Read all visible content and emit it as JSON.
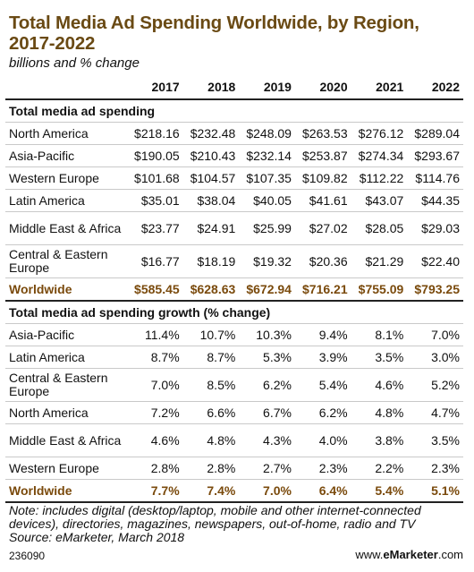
{
  "title": "Total Media Ad Spending Worldwide, by Region, 2017-2022",
  "subtitle": "billions and % change",
  "years": [
    "2017",
    "2018",
    "2019",
    "2020",
    "2021",
    "2022"
  ],
  "section1": {
    "heading": "Total media ad spending",
    "rows": [
      {
        "label": "North America",
        "values": [
          "$218.16",
          "$232.48",
          "$248.09",
          "$263.53",
          "$276.12",
          "$289.04"
        ]
      },
      {
        "label": "Asia-Pacific",
        "values": [
          "$190.05",
          "$210.43",
          "$232.14",
          "$253.87",
          "$274.34",
          "$293.67"
        ]
      },
      {
        "label": "Western Europe",
        "values": [
          "$101.68",
          "$104.57",
          "$107.35",
          "$109.82",
          "$112.22",
          "$114.76"
        ]
      },
      {
        "label": "Latin America",
        "values": [
          "$35.01",
          "$38.04",
          "$40.05",
          "$41.61",
          "$43.07",
          "$44.35"
        ]
      },
      {
        "label": "Middle East & Africa",
        "values": [
          "$23.77",
          "$24.91",
          "$25.99",
          "$27.02",
          "$28.05",
          "$29.03"
        ]
      },
      {
        "label": "Central & Eastern Europe",
        "values": [
          "$16.77",
          "$18.19",
          "$19.32",
          "$20.36",
          "$21.29",
          "$22.40"
        ]
      }
    ],
    "total": {
      "label": "Worldwide",
      "values": [
        "$585.45",
        "$628.63",
        "$672.94",
        "$716.21",
        "$755.09",
        "$793.25"
      ]
    }
  },
  "section2": {
    "heading": "Total media ad spending growth (% change)",
    "rows": [
      {
        "label": "Asia-Pacific",
        "values": [
          "11.4%",
          "10.7%",
          "10.3%",
          "9.4%",
          "8.1%",
          "7.0%"
        ]
      },
      {
        "label": "Latin America",
        "values": [
          "8.7%",
          "8.7%",
          "5.3%",
          "3.9%",
          "3.5%",
          "3.0%"
        ]
      },
      {
        "label": "Central & Eastern Europe",
        "values": [
          "7.0%",
          "8.5%",
          "6.2%",
          "5.4%",
          "4.6%",
          "5.2%"
        ]
      },
      {
        "label": "North America",
        "values": [
          "7.2%",
          "6.6%",
          "6.7%",
          "6.2%",
          "4.8%",
          "4.7%"
        ]
      },
      {
        "label": "Middle East & Africa",
        "values": [
          "4.6%",
          "4.8%",
          "4.3%",
          "4.0%",
          "3.8%",
          "3.5%"
        ]
      },
      {
        "label": "Western Europe",
        "values": [
          "2.8%",
          "2.8%",
          "2.7%",
          "2.3%",
          "2.2%",
          "2.3%"
        ]
      }
    ],
    "total": {
      "label": "Worldwide",
      "values": [
        "7.7%",
        "7.4%",
        "7.0%",
        "6.4%",
        "5.4%",
        "5.1%"
      ]
    }
  },
  "note": "Note: includes digital (desktop/laptop, mobile and other internet-connected devices), directories, magazines, newspapers, out-of-home, radio and TV",
  "source": "Source: eMarketer, March 2018",
  "chart_id": "236090",
  "brand": {
    "prefix": "www.",
    "name": "eMarketer",
    "suffix": ".com"
  },
  "colors": {
    "title": "#6a4a14",
    "total_row": "#7a4a0c"
  },
  "chart_data": {
    "type": "table",
    "title": "Total Media Ad Spending Worldwide, by Region, 2017-2022",
    "subtitle": "billions and % change",
    "columns": [
      "2017",
      "2018",
      "2019",
      "2020",
      "2021",
      "2022"
    ],
    "tables": [
      {
        "name": "Total media ad spending",
        "rows": [
          {
            "label": "North America",
            "values": [
              218.16,
              232.48,
              248.09,
              263.53,
              276.12,
              289.04
            ]
          },
          {
            "label": "Asia-Pacific",
            "values": [
              190.05,
              210.43,
              232.14,
              253.87,
              274.34,
              293.67
            ]
          },
          {
            "label": "Western Europe",
            "values": [
              101.68,
              104.57,
              107.35,
              109.82,
              112.22,
              114.76
            ]
          },
          {
            "label": "Latin America",
            "values": [
              35.01,
              38.04,
              40.05,
              41.61,
              43.07,
              44.35
            ]
          },
          {
            "label": "Middle East & Africa",
            "values": [
              23.77,
              24.91,
              25.99,
              27.02,
              28.05,
              29.03
            ]
          },
          {
            "label": "Central & Eastern Europe",
            "values": [
              16.77,
              18.19,
              19.32,
              20.36,
              21.29,
              22.4
            ]
          },
          {
            "label": "Worldwide",
            "values": [
              585.45,
              628.63,
              672.94,
              716.21,
              755.09,
              793.25
            ]
          }
        ]
      },
      {
        "name": "Total media ad spending growth (% change)",
        "rows": [
          {
            "label": "Asia-Pacific",
            "values": [
              11.4,
              10.7,
              10.3,
              9.4,
              8.1,
              7.0
            ]
          },
          {
            "label": "Latin America",
            "values": [
              8.7,
              8.7,
              5.3,
              3.9,
              3.5,
              3.0
            ]
          },
          {
            "label": "Central & Eastern Europe",
            "values": [
              7.0,
              8.5,
              6.2,
              5.4,
              4.6,
              5.2
            ]
          },
          {
            "label": "North America",
            "values": [
              7.2,
              6.6,
              6.7,
              6.2,
              4.8,
              4.7
            ]
          },
          {
            "label": "Middle East & Africa",
            "values": [
              4.6,
              4.8,
              4.3,
              4.0,
              3.8,
              3.5
            ]
          },
          {
            "label": "Western Europe",
            "values": [
              2.8,
              2.8,
              2.7,
              2.3,
              2.2,
              2.3
            ]
          },
          {
            "label": "Worldwide",
            "values": [
              7.7,
              7.4,
              7.0,
              6.4,
              5.4,
              5.1
            ]
          }
        ]
      }
    ]
  }
}
